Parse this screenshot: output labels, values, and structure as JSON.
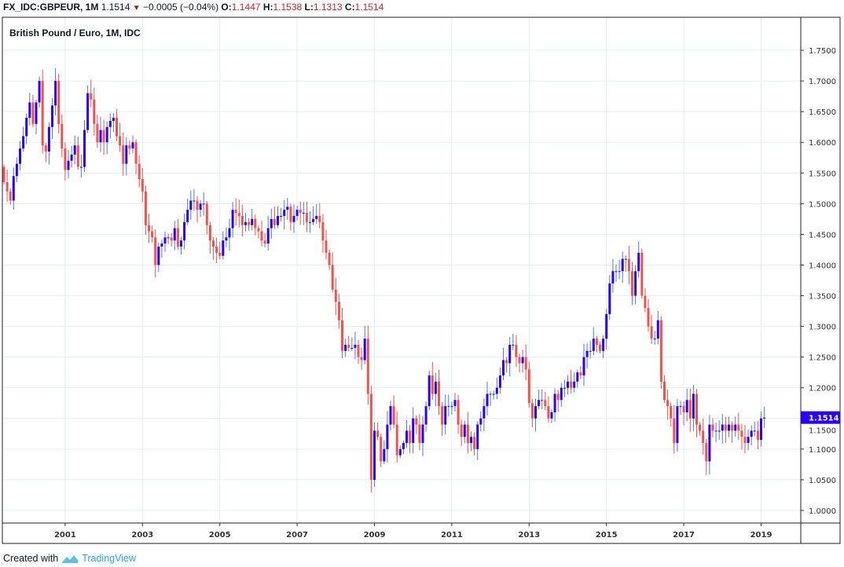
{
  "header": {
    "symbol": "FX_IDC:GBPEUR, 1M",
    "last": "1.1514",
    "change": "−0.0005 (−0.04%)",
    "o_label": "O:",
    "o": "1.1447",
    "h_label": "H:",
    "h": "1.1538",
    "l_label": "L:",
    "l": "1.1313",
    "c_label": "C:",
    "c": "1.1514",
    "direction_icon": "triangle-down-icon"
  },
  "footer": {
    "created_with": "Created with",
    "brand": "TradingView"
  },
  "colors": {
    "up_body": "#2b00f5",
    "up_wick": "#4a7be6",
    "down": "#ef5350",
    "grid": "#e3edf4",
    "last_label_bg": "#2b00f5"
  },
  "chart_data": {
    "type": "candlestick",
    "title": "British Pound / Euro, 1M, IDC",
    "start": "1999-06",
    "interval": "1M",
    "first_open": 1.56,
    "ylim": [
      0.975,
      1.78
    ],
    "y_ticks": [
      "1.0000",
      "1.0500",
      "1.1000",
      "1.1500",
      "1.2000",
      "1.2500",
      "1.3000",
      "1.3500",
      "1.4000",
      "1.4500",
      "1.5000",
      "1.5500",
      "1.6000",
      "1.6500",
      "1.7000",
      "1.7500"
    ],
    "x_ticks": [
      "2001",
      "2003",
      "2005",
      "2007",
      "2009",
      "2011",
      "2013",
      "2015",
      "2017",
      "2019"
    ],
    "last_price_label": "1.1514",
    "grid": true,
    "closes": [
      1.535,
      1.52,
      1.505,
      1.545,
      1.565,
      1.59,
      1.61,
      1.64,
      1.665,
      1.63,
      1.665,
      1.7,
      1.595,
      1.585,
      1.625,
      1.66,
      1.7,
      1.63,
      1.59,
      1.555,
      1.57,
      1.58,
      1.595,
      1.56,
      1.56,
      1.62,
      1.68,
      1.67,
      1.63,
      1.6,
      1.62,
      1.6,
      1.625,
      1.635,
      1.64,
      1.61,
      1.595,
      1.565,
      1.595,
      1.59,
      1.6,
      1.565,
      1.54,
      1.52,
      1.465,
      1.455,
      1.445,
      1.4,
      1.43,
      1.435,
      1.445,
      1.445,
      1.44,
      1.46,
      1.43,
      1.44,
      1.47,
      1.49,
      1.505,
      1.505,
      1.49,
      1.5,
      1.5,
      1.465,
      1.44,
      1.43,
      1.42,
      1.415,
      1.44,
      1.445,
      1.46,
      1.49,
      1.485,
      1.48,
      1.465,
      1.47,
      1.465,
      1.475,
      1.46,
      1.455,
      1.44,
      1.435,
      1.46,
      1.475,
      1.465,
      1.48,
      1.48,
      1.49,
      1.495,
      1.47,
      1.48,
      1.49,
      1.485,
      1.485,
      1.47,
      1.47,
      1.475,
      1.48,
      1.47,
      1.44,
      1.42,
      1.4,
      1.36,
      1.34,
      1.31,
      1.26,
      1.27,
      1.265,
      1.265,
      1.27,
      1.25,
      1.245,
      1.28,
      1.19,
      1.05,
      1.13,
      1.12,
      1.08,
      1.1,
      1.14,
      1.17,
      1.14,
      1.09,
      1.1,
      1.11,
      1.13,
      1.11,
      1.15,
      1.14,
      1.11,
      1.14,
      1.17,
      1.22,
      1.19,
      1.21,
      1.17,
      1.14,
      1.17,
      1.17,
      1.17,
      1.18,
      1.14,
      1.12,
      1.14,
      1.11,
      1.12,
      1.1,
      1.14,
      1.15,
      1.17,
      1.19,
      1.19,
      1.19,
      1.2,
      1.22,
      1.245,
      1.24,
      1.27,
      1.27,
      1.25,
      1.24,
      1.25,
      1.23,
      1.175,
      1.15,
      1.17,
      1.18,
      1.18,
      1.17,
      1.15,
      1.16,
      1.19,
      1.18,
      1.2,
      1.2,
      1.21,
      1.2,
      1.21,
      1.225,
      1.22,
      1.25,
      1.26,
      1.26,
      1.28,
      1.27,
      1.26,
      1.28,
      1.32,
      1.37,
      1.39,
      1.39,
      1.39,
      1.41,
      1.41,
      1.39,
      1.35,
      1.39,
      1.42,
      1.35,
      1.33,
      1.3,
      1.28,
      1.28,
      1.31,
      1.21,
      1.18,
      1.17,
      1.15,
      1.11,
      1.17,
      1.17,
      1.16,
      1.18,
      1.15,
      1.19,
      1.14,
      1.13,
      1.11,
      1.08,
      1.14,
      1.13,
      1.13,
      1.13,
      1.14,
      1.13,
      1.14,
      1.13,
      1.14,
      1.13,
      1.12,
      1.11,
      1.12,
      1.13,
      1.13,
      1.115,
      1.15,
      1.1514
    ]
  }
}
